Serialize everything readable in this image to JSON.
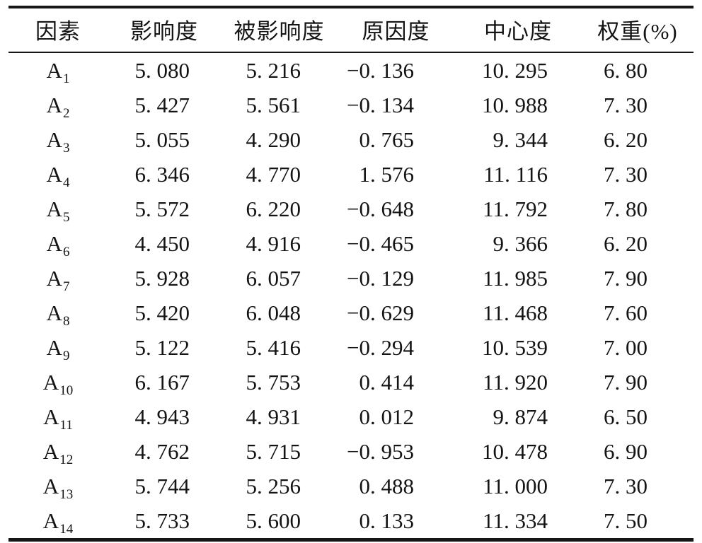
{
  "table": {
    "columns": [
      "因素",
      "影响度",
      "被影响度",
      "原因度",
      "中心度",
      "权重(%)"
    ],
    "rows": [
      {
        "factor_base": "A",
        "factor_sub": "1",
        "influence": "5. 080",
        "influenced": "5. 216",
        "cause": "−0. 136",
        "centrality": "10. 295",
        "weight": "6. 80"
      },
      {
        "factor_base": "A",
        "factor_sub": "2",
        "influence": "5. 427",
        "influenced": "5. 561",
        "cause": "−0. 134",
        "centrality": "10. 988",
        "weight": "7. 30"
      },
      {
        "factor_base": "A",
        "factor_sub": "3",
        "influence": "5. 055",
        "influenced": "4. 290",
        "cause": "0. 765",
        "centrality": "9. 344",
        "weight": "6. 20"
      },
      {
        "factor_base": "A",
        "factor_sub": "4",
        "influence": "6. 346",
        "influenced": "4. 770",
        "cause": "1. 576",
        "centrality": "11. 116",
        "weight": "7. 30"
      },
      {
        "factor_base": "A",
        "factor_sub": "5",
        "influence": "5. 572",
        "influenced": "6. 220",
        "cause": "−0. 648",
        "centrality": "11. 792",
        "weight": "7. 80"
      },
      {
        "factor_base": "A",
        "factor_sub": "6",
        "influence": "4. 450",
        "influenced": "4. 916",
        "cause": "−0. 465",
        "centrality": "9. 366",
        "weight": "6. 20"
      },
      {
        "factor_base": "A",
        "factor_sub": "7",
        "influence": "5. 928",
        "influenced": "6. 057",
        "cause": "−0. 129",
        "centrality": "11. 985",
        "weight": "7. 90"
      },
      {
        "factor_base": "A",
        "factor_sub": "8",
        "influence": "5. 420",
        "influenced": "6. 048",
        "cause": "−0. 629",
        "centrality": "11. 468",
        "weight": "7. 60"
      },
      {
        "factor_base": "A",
        "factor_sub": "9",
        "influence": "5. 122",
        "influenced": "5. 416",
        "cause": "−0. 294",
        "centrality": "10. 539",
        "weight": "7. 00"
      },
      {
        "factor_base": "A",
        "factor_sub": "10",
        "influence": "6. 167",
        "influenced": "5. 753",
        "cause": "0. 414",
        "centrality": "11. 920",
        "weight": "7. 90"
      },
      {
        "factor_base": "A",
        "factor_sub": "11",
        "influence": "4. 943",
        "influenced": "4. 931",
        "cause": "0. 012",
        "centrality": "9. 874",
        "weight": "6. 50"
      },
      {
        "factor_base": "A",
        "factor_sub": "12",
        "influence": "4. 762",
        "influenced": "5. 715",
        "cause": "−0. 953",
        "centrality": "10. 478",
        "weight": "6. 90"
      },
      {
        "factor_base": "A",
        "factor_sub": "13",
        "influence": "5. 744",
        "influenced": "5. 256",
        "cause": "0. 488",
        "centrality": "11. 000",
        "weight": "7. 30"
      },
      {
        "factor_base": "A",
        "factor_sub": "14",
        "influence": "5. 733",
        "influenced": "5. 600",
        "cause": "0. 133",
        "centrality": "11. 334",
        "weight": "7. 50"
      }
    ]
  }
}
